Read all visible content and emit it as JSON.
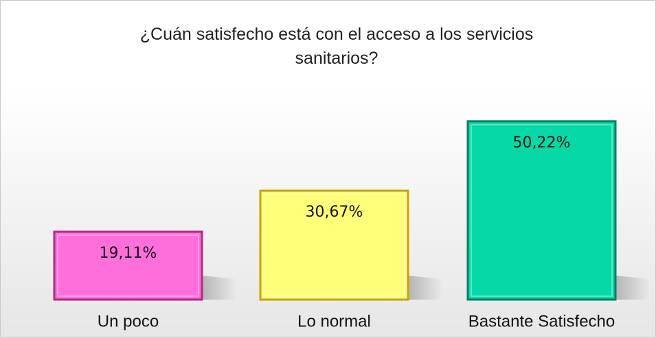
{
  "chart_data": {
    "type": "bar",
    "title": "¿Cuán satisfecho está con el acceso a los servicios sanitarios?",
    "categories": [
      "Un poco",
      "Lo normal",
      "Bastante Satisfecho"
    ],
    "values": [
      19.11,
      30.67,
      50.22
    ],
    "value_labels": [
      "19,11%",
      "30,67%",
      "50,22%"
    ],
    "colors": [
      "#ff6fdc",
      "#ffff7a",
      "#06d9a7"
    ],
    "edge_colors": [
      "#b52a7e",
      "#c9a400",
      "#0b7f62"
    ]
  }
}
